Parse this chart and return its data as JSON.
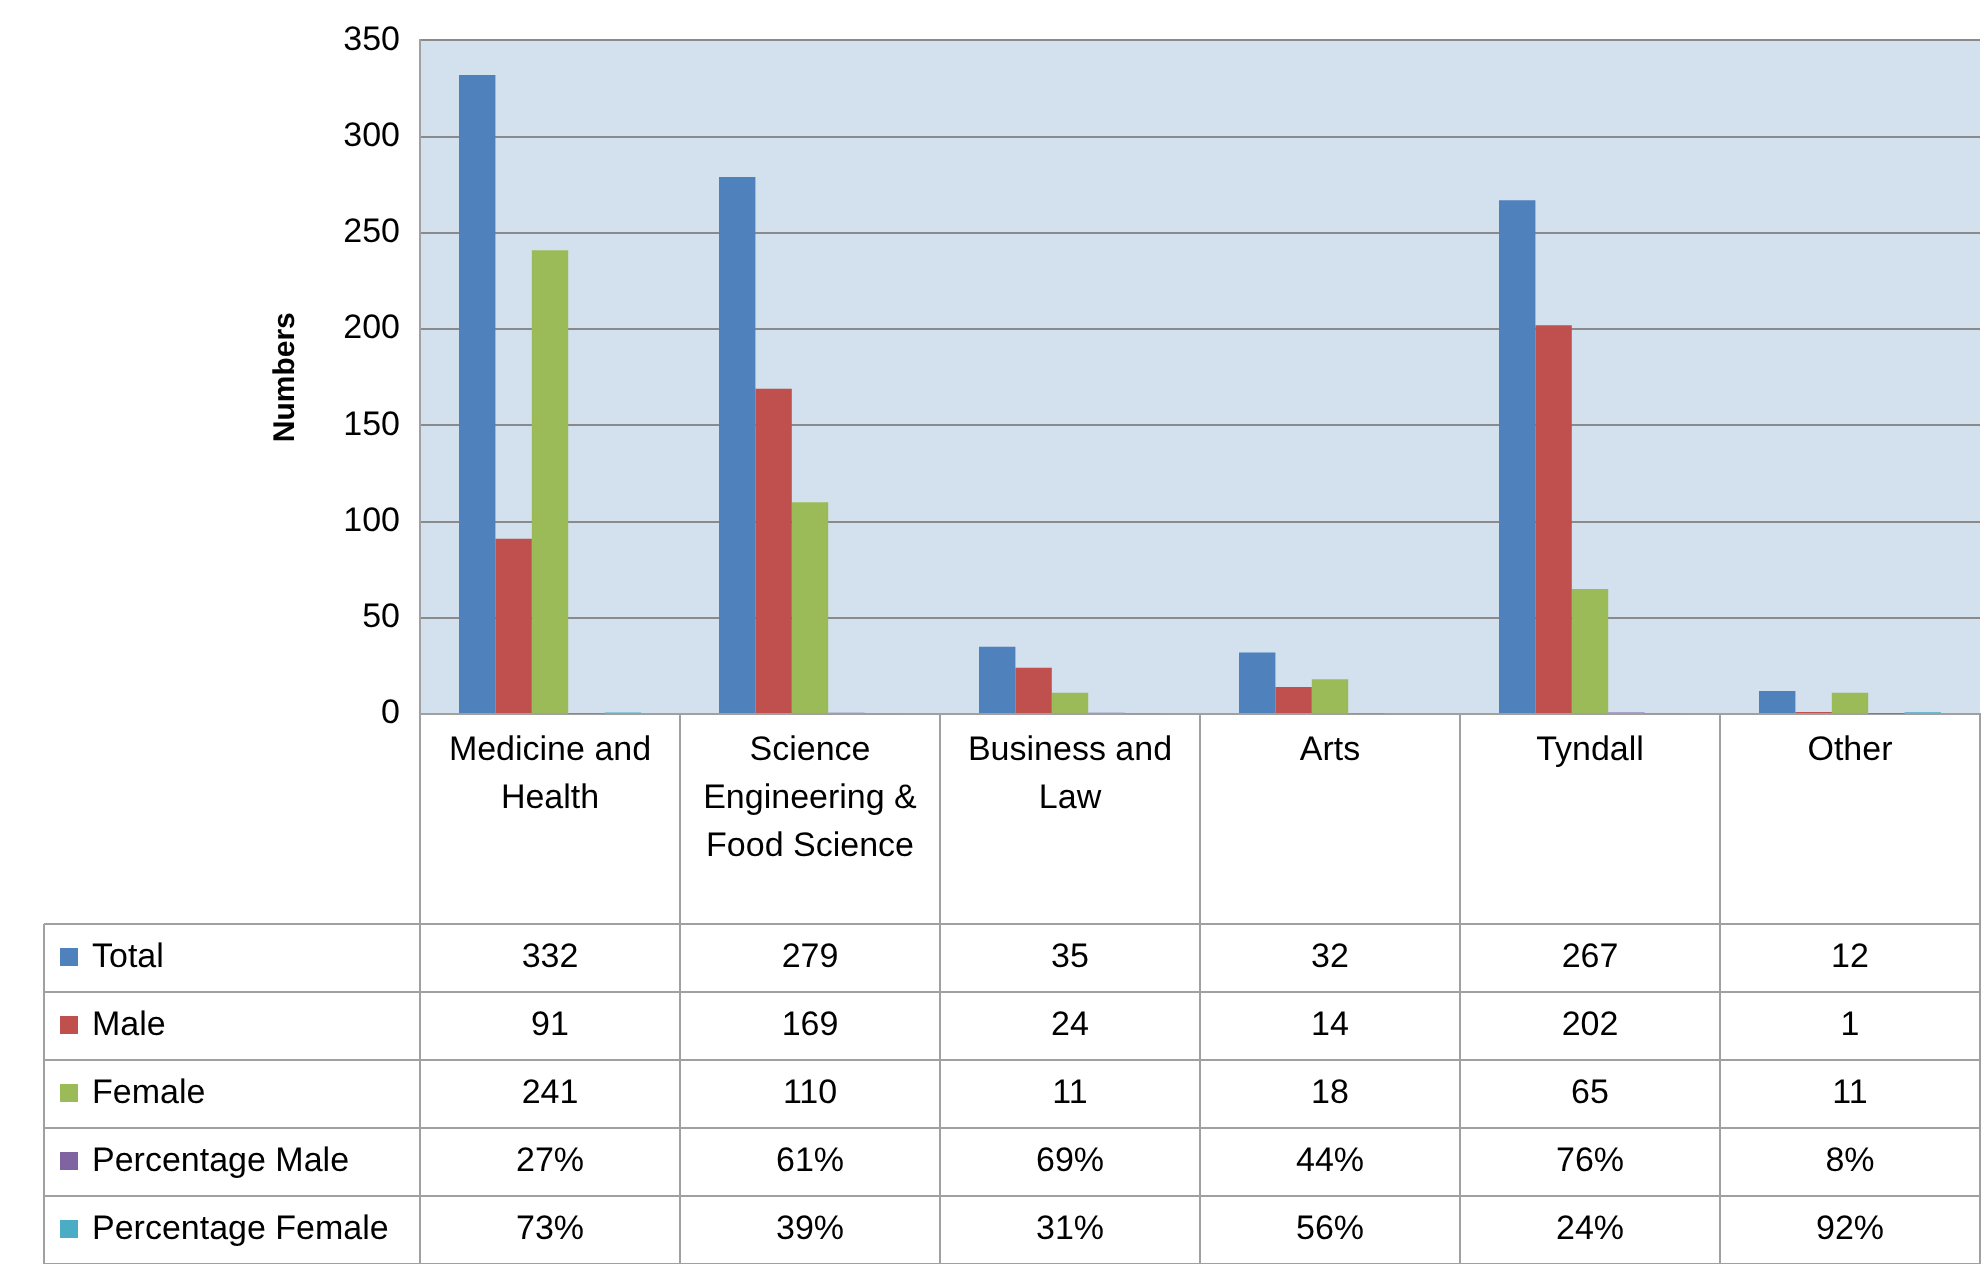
{
  "chart_data": {
    "type": "bar",
    "ylabel": "Numbers",
    "categories": [
      "Medicine and Health",
      "Science Engineering & Food Science",
      "Business and Law",
      "Arts",
      "Tyndall",
      "Other"
    ],
    "series": [
      {
        "name": "Total",
        "color": "#4f81bd",
        "values": [
          332,
          279,
          35,
          32,
          267,
          12
        ],
        "value_labels": [
          "332",
          "279",
          "35",
          "32",
          "267",
          "12"
        ]
      },
      {
        "name": "Male",
        "color": "#c0504d",
        "values": [
          91,
          169,
          24,
          14,
          202,
          1
        ],
        "value_labels": [
          "91",
          "169",
          "24",
          "14",
          "202",
          "1"
        ]
      },
      {
        "name": "Female",
        "color": "#9bbb59",
        "values": [
          241,
          110,
          11,
          18,
          65,
          11
        ],
        "value_labels": [
          "241",
          "110",
          "11",
          "18",
          "65",
          "11"
        ]
      },
      {
        "name": "Percentage Male",
        "color": "#8064a2",
        "values": [
          0.27,
          0.61,
          0.69,
          0.44,
          0.76,
          0.08
        ],
        "value_labels": [
          "27%",
          "61%",
          "69%",
          "44%",
          "76%",
          "8%"
        ]
      },
      {
        "name": "Percentage Female",
        "color": "#4bacc6",
        "values": [
          0.73,
          0.39,
          0.31,
          0.56,
          0.24,
          0.92
        ],
        "value_labels": [
          "73%",
          "39%",
          "31%",
          "56%",
          "24%",
          "92%"
        ]
      }
    ],
    "ylim": [
      0,
      350
    ],
    "yticks": [
      0,
      50,
      100,
      150,
      200,
      250,
      300,
      350
    ],
    "grid": "y",
    "legend": "bottom left"
  }
}
